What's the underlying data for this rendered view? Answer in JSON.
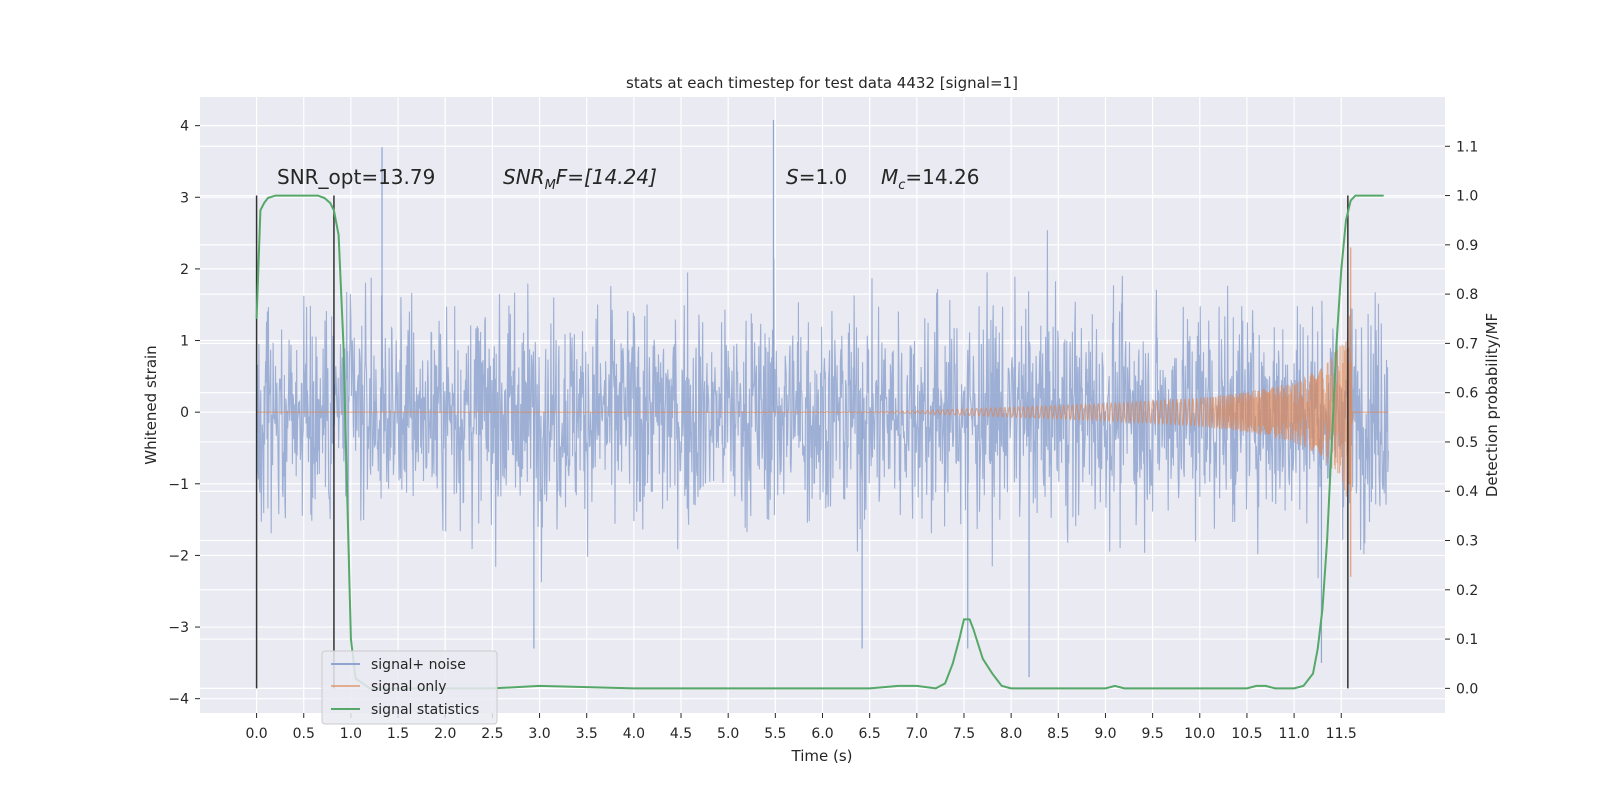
{
  "chart_data": {
    "type": "line",
    "title": "stats at each timestep for test data 4432 [signal=1]",
    "xlabel": "Time (s)",
    "ylabel": "Whitened strain",
    "y2label": "Detection probability/MF",
    "xlim": [
      -0.6,
      12.6
    ],
    "ylim": [
      -4.2,
      4.4
    ],
    "y2lim": [
      -0.05,
      1.2
    ],
    "x_ticks": [
      "0.0",
      "0.5",
      "1.0",
      "1.5",
      "2.0",
      "2.5",
      "3.0",
      "3.5",
      "4.0",
      "4.5",
      "5.0",
      "5.5",
      "6.0",
      "6.5",
      "7.0",
      "7.5",
      "8.0",
      "8.5",
      "9.0",
      "9.5",
      "10.0",
      "10.5",
      "11.0",
      "11.5"
    ],
    "y_ticks": [
      "4",
      "3",
      "2",
      "1",
      "0",
      "−1",
      "−2",
      "−3",
      "−4"
    ],
    "y2_ticks": [
      "1.1",
      "1.0",
      "0.9",
      "0.8",
      "0.7",
      "0.6",
      "0.5",
      "0.4",
      "0.3",
      "0.2",
      "0.1",
      "0.0"
    ],
    "grid": true,
    "legend_position": "lower-left",
    "annotations": {
      "snr_opt": "SNR_opt=13.79",
      "snr_mf_name": "SNR",
      "snr_mf_sub": "M",
      "snr_mf_rest": "F=[14.24]",
      "s_name": "S",
      "s_value": "=1.0",
      "mc_name": "M",
      "mc_sub": "c",
      "mc_value": "=14.26"
    },
    "vertical_markers_x": [
      0.0,
      0.82,
      11.57
    ],
    "series": [
      {
        "name": "signal+ noise",
        "color": "#8fa5cf",
        "x_range": [
          0.0,
          12.0
        ],
        "noise_sigma": 1.0,
        "notable_peaks": [
          [
            1.33,
            3.7
          ],
          [
            5.48,
            4.08
          ],
          [
            2.94,
            -3.3
          ],
          [
            6.42,
            -3.3
          ],
          [
            7.54,
            -3.3
          ],
          [
            8.19,
            -3.7
          ],
          [
            11.29,
            -3.5
          ]
        ]
      },
      {
        "name": "signal only",
        "color": "#dd8452",
        "x_range": [
          0.0,
          12.0
        ],
        "envelope": [
          [
            0.0,
            0.0
          ],
          [
            6.5,
            0.005
          ],
          [
            7.0,
            0.02
          ],
          [
            8.0,
            0.07
          ],
          [
            9.0,
            0.12
          ],
          [
            10.0,
            0.2
          ],
          [
            10.5,
            0.28
          ],
          [
            11.0,
            0.42
          ],
          [
            11.3,
            0.62
          ],
          [
            11.5,
            0.95
          ],
          [
            11.6,
            1.4
          ],
          [
            11.62,
            0.0
          ],
          [
            12.0,
            0.0
          ]
        ],
        "peak_x": 11.6,
        "peak_y": 2.3,
        "trough_y": -2.3
      },
      {
        "name": "signal statistics",
        "color": "#55a868",
        "axis": "right",
        "x": [
          0.0,
          0.04,
          0.08,
          0.12,
          0.2,
          0.3,
          0.5,
          0.65,
          0.72,
          0.78,
          0.82,
          0.87,
          0.92,
          0.96,
          1.0,
          1.05,
          1.2,
          1.5,
          2.0,
          2.5,
          3.0,
          4.0,
          5.0,
          6.0,
          6.5,
          6.8,
          7.0,
          7.2,
          7.3,
          7.38,
          7.45,
          7.5,
          7.56,
          7.6,
          7.65,
          7.7,
          7.8,
          7.9,
          8.0,
          8.1,
          8.2,
          8.5,
          9.0,
          9.1,
          9.2,
          9.5,
          10.0,
          10.5,
          10.6,
          10.7,
          10.8,
          11.0,
          11.1,
          11.2,
          11.25,
          11.3,
          11.35,
          11.4,
          11.45,
          11.5,
          11.55,
          11.6,
          11.65,
          11.7,
          11.75,
          11.8,
          11.9,
          11.95
        ],
        "values": [
          0.75,
          0.97,
          0.985,
          0.995,
          1.0,
          1.0,
          1.0,
          1.0,
          0.995,
          0.985,
          0.97,
          0.92,
          0.7,
          0.4,
          0.1,
          0.02,
          0.0,
          0.0,
          0.0,
          0.0,
          0.005,
          0.0,
          0.0,
          0.0,
          0.0,
          0.005,
          0.005,
          0.0,
          0.01,
          0.05,
          0.1,
          0.14,
          0.14,
          0.12,
          0.09,
          0.06,
          0.03,
          0.005,
          0.0,
          0.0,
          0.0,
          0.0,
          0.0,
          0.005,
          0.0,
          0.0,
          0.0,
          0.0,
          0.005,
          0.005,
          0.0,
          0.0,
          0.005,
          0.03,
          0.08,
          0.16,
          0.3,
          0.5,
          0.7,
          0.85,
          0.95,
          0.99,
          1.0,
          1.0,
          1.0,
          1.0,
          1.0,
          1.0
        ]
      }
    ]
  }
}
